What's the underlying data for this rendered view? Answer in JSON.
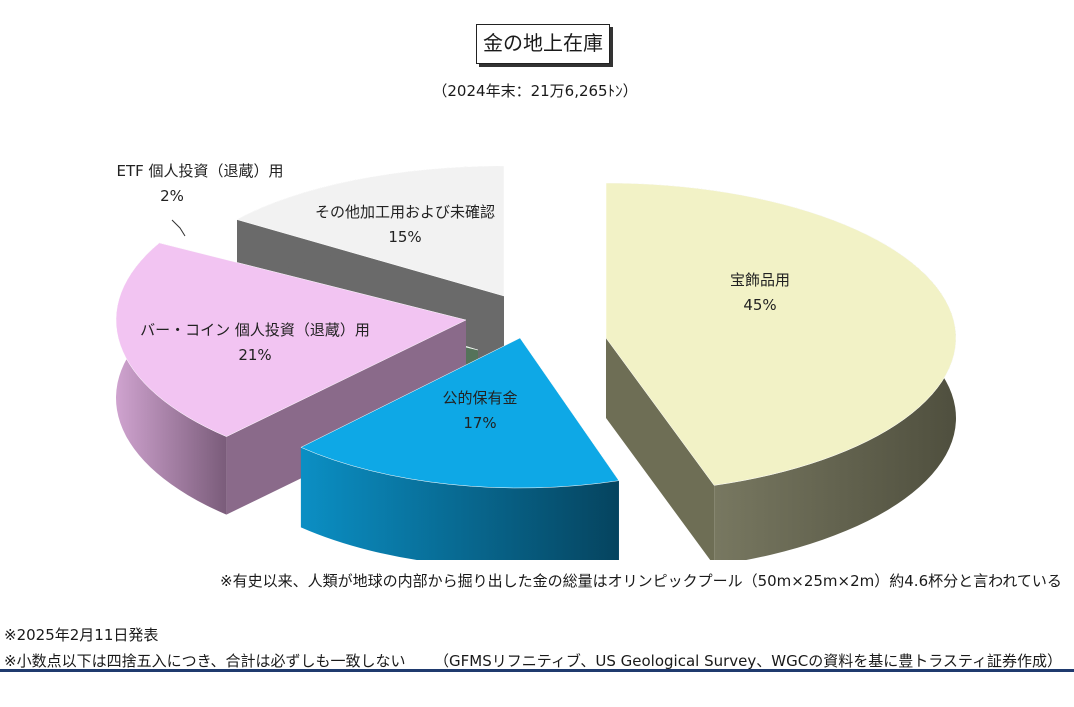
{
  "title": "金の地上在庫",
  "subtitle": "（2024年末：21万6,265ﾄﾝ）",
  "chart_data": {
    "type": "pie",
    "title": "金の地上在庫",
    "subtitle": "（2024年末：21万6,265ﾄﾝ）",
    "slices": [
      {
        "label": "宝飾品用",
        "value": 45,
        "value_label": "45%",
        "color": "#f2f2c6",
        "side_color": "#6e6e55"
      },
      {
        "label": "公的保有金",
        "value": 17,
        "value_label": "17%",
        "color": "#0ea8e6",
        "side_color": "#08567a"
      },
      {
        "label": "バー・コイン 個人投資（退蔵）用",
        "value": 21,
        "value_label": "21%",
        "color": "#f2c4f2",
        "side_color": "#8a6a8a"
      },
      {
        "label": "ETF 個人投資（退蔵）用",
        "value": 2,
        "value_label": "2%",
        "color": "#c6f2c6",
        "side_color": "#55735a"
      },
      {
        "label": "その他加工用および未確認",
        "value": 15,
        "value_label": "15%",
        "color": "#f2f2f2",
        "side_color": "#6a6a6a"
      }
    ]
  },
  "notes": {
    "olympic": "※有史以来、人類が地球の内部から掘り出した金の総量はオリンピックプール（50m×25m×2m）約4.6杯分と言われている",
    "date": "※2025年2月11日発表",
    "rounding": "※小数点以下は四捨五入につき、合計は必ずしも一致しない",
    "source": "（GFMSリフニティブ、US Geological Survey、WGCの資料を基に豊トラスティ証券作成）"
  }
}
